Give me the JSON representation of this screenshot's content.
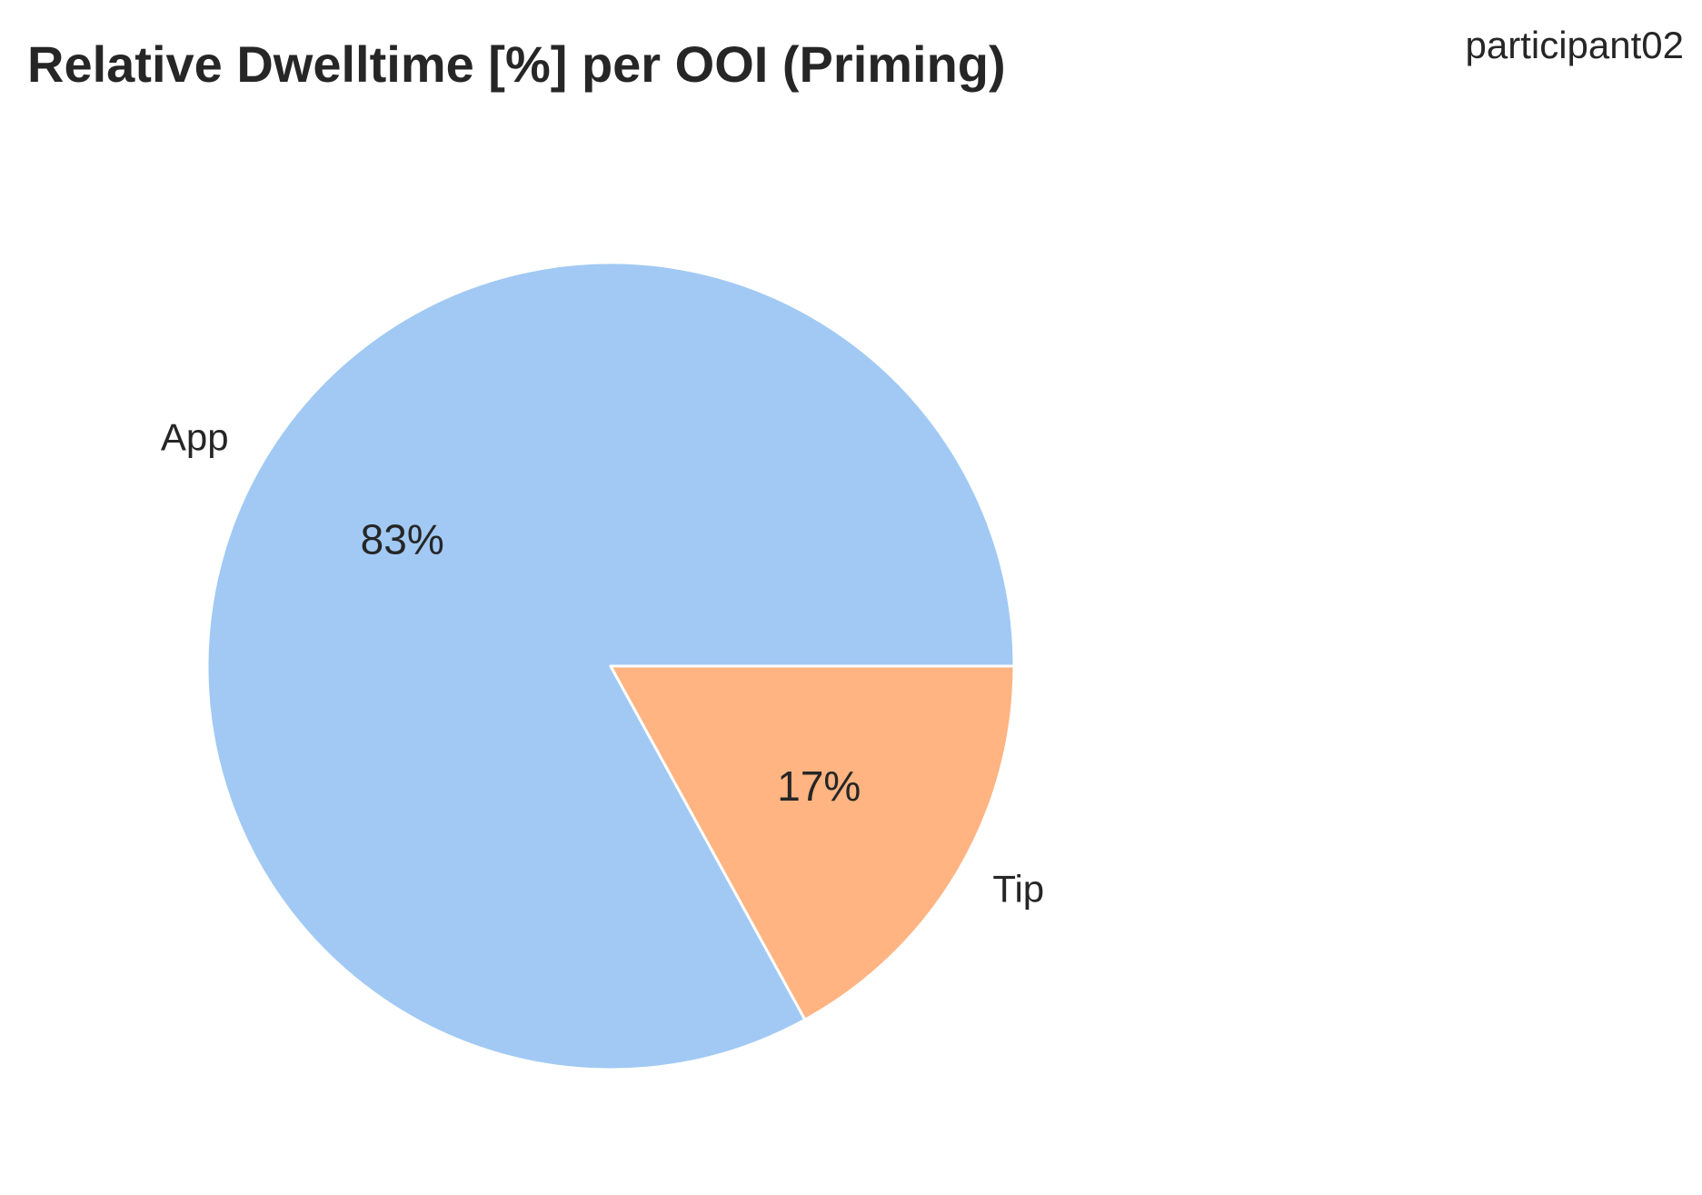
{
  "chart_data": {
    "type": "pie",
    "title": "Relative Dwelltime [%] per OOI (Priming)",
    "subtitle": "participant02",
    "slices": [
      {
        "label": "App",
        "value": 83,
        "pct_label": "83%",
        "color": "#a1c9f4"
      },
      {
        "label": "Tip",
        "value": 17,
        "pct_label": "17%",
        "color": "#ffb482"
      }
    ],
    "start_angle_deg": 0,
    "direction": "counterclockwise",
    "wedge_edge_color": "#ffffff"
  }
}
